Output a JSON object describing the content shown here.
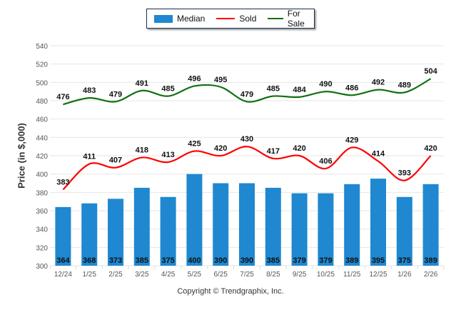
{
  "chart_data": {
    "type": "bar",
    "title": "",
    "xlabel": "",
    "ylabel": "Price (in $,000)",
    "ylim": [
      300,
      540
    ],
    "yticks": [
      300,
      320,
      340,
      360,
      380,
      400,
      420,
      440,
      460,
      480,
      500,
      520,
      540
    ],
    "grid": true,
    "legend_position": "top-center",
    "categories": [
      "12/24",
      "1/25",
      "2/25",
      "3/25",
      "4/25",
      "5/25",
      "6/25",
      "7/25",
      "8/25",
      "9/25",
      "10/25",
      "11/25",
      "12/25",
      "1/26",
      "2/26"
    ],
    "series": [
      {
        "name": "Median",
        "kind": "bar",
        "color": "#1f88d0",
        "values": [
          364,
          368,
          373,
          385,
          375,
          400,
          390,
          390,
          385,
          379,
          379,
          389,
          395,
          375,
          389
        ]
      },
      {
        "name": "Sold",
        "kind": "line",
        "color": "#ff0000",
        "values": [
          383,
          411,
          407,
          418,
          413,
          425,
          420,
          430,
          417,
          420,
          406,
          429,
          414,
          393,
          420
        ]
      },
      {
        "name": "For Sale",
        "kind": "line",
        "color": "#117011",
        "values": [
          476,
          483,
          479,
          491,
          485,
          496,
          495,
          479,
          485,
          484,
          490,
          486,
          492,
          489,
          504
        ]
      }
    ]
  },
  "legend": {
    "median": "Median",
    "sold": "Sold",
    "for_sale": "For Sale"
  },
  "footer": {
    "copyright": "Copyright © Trendgraphix, Inc."
  }
}
